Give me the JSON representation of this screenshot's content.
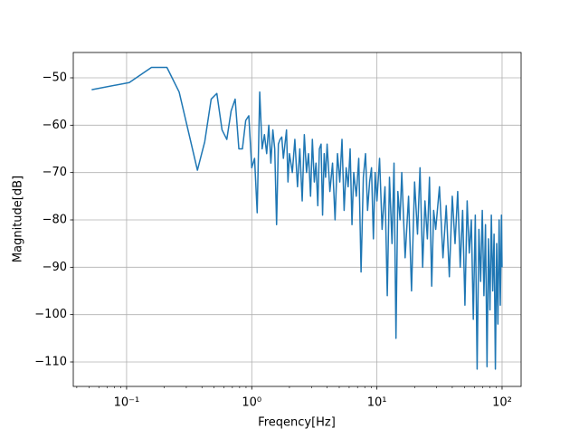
{
  "chart_data": {
    "type": "line",
    "xlabel": "Freqency[Hz]",
    "ylabel": "Magnitude[dB]",
    "xscale": "log",
    "grid": true,
    "xlim": [
      0.0375,
      141.9
    ],
    "ylim": [
      -115.16,
      -44.65
    ],
    "xticks": [
      {
        "value": 0.1,
        "label": "10⁻¹"
      },
      {
        "value": 1,
        "label": "10⁰"
      },
      {
        "value": 10,
        "label": "10¹"
      },
      {
        "value": 100,
        "label": "10²"
      }
    ],
    "xminorticks": [
      0.04,
      0.05,
      0.06,
      0.07,
      0.08,
      0.09,
      0.2,
      0.3,
      0.4,
      0.5,
      0.6,
      0.7,
      0.8,
      0.9,
      2,
      3,
      4,
      5,
      6,
      7,
      8,
      9,
      20,
      30,
      40,
      50,
      60,
      70,
      80,
      90
    ],
    "yticks": [
      {
        "value": -50,
        "label": "−50"
      },
      {
        "value": -60,
        "label": "−60"
      },
      {
        "value": -70,
        "label": "−70"
      },
      {
        "value": -80,
        "label": "−80"
      },
      {
        "value": -90,
        "label": "−90"
      },
      {
        "value": -100,
        "label": "−100"
      },
      {
        "value": -110,
        "label": "−110"
      }
    ],
    "series": [
      {
        "color": "#1f77b4",
        "x": [
          0.0526,
          0.105,
          0.158,
          0.21,
          0.263,
          0.316,
          0.368,
          0.421,
          0.474,
          0.526,
          0.579,
          0.632,
          0.684,
          0.737,
          0.789,
          0.842,
          0.895,
          0.947,
          1.0,
          1.053,
          1.105,
          1.158,
          1.21,
          1.263,
          1.316,
          1.368,
          1.421,
          1.474,
          1.526,
          1.579,
          1.632,
          1.684,
          1.737,
          1.789,
          1.842,
          1.895,
          1.947,
          2.0,
          2.11,
          2.21,
          2.32,
          2.42,
          2.53,
          2.63,
          2.74,
          2.84,
          2.95,
          3.05,
          3.16,
          3.26,
          3.37,
          3.47,
          3.58,
          3.68,
          3.79,
          3.89,
          4.0,
          4.21,
          4.42,
          4.63,
          4.84,
          5.05,
          5.26,
          5.47,
          5.68,
          5.89,
          6.11,
          6.32,
          6.53,
          6.84,
          7.16,
          7.47,
          7.79,
          8.11,
          8.42,
          8.74,
          9.05,
          9.37,
          9.68,
          10.0,
          10.5,
          11.0,
          11.6,
          12.1,
          12.6,
          13.2,
          13.7,
          14.2,
          14.7,
          15.3,
          15.8,
          16.8,
          17.9,
          18.9,
          20.0,
          21.1,
          22.1,
          23.2,
          24.2,
          25.3,
          26.3,
          27.4,
          28.4,
          29.5,
          31.6,
          33.7,
          35.8,
          37.9,
          40.0,
          42.1,
          44.2,
          46.3,
          48.4,
          50.5,
          52.6,
          54.7,
          56.8,
          58.9,
          61.1,
          63.2,
          65.3,
          67.4,
          69.5,
          71.6,
          73.7,
          75.8,
          77.9,
          80.0,
          82.1,
          84.2,
          86.3,
          88.4,
          90.5,
          92.6,
          94.7,
          96.8,
          98.9,
          100.0
        ],
        "values": [
          -52.5,
          -51,
          -47.8,
          -47.8,
          -53,
          -62,
          -69.5,
          -63.5,
          -54.5,
          -53.3,
          -61,
          -63,
          -57,
          -54.5,
          -65,
          -65,
          -59,
          -58,
          -69,
          -67,
          -78.5,
          -53,
          -65,
          -62,
          -66,
          -60,
          -68,
          -61,
          -65,
          -81,
          -64,
          -63,
          -62.5,
          -67,
          -64,
          -61,
          -72,
          -66,
          -70,
          -63,
          -73,
          -65,
          -76,
          -62,
          -70,
          -66,
          -75,
          -63,
          -72,
          -68,
          -77,
          -65,
          -64,
          -79,
          -66,
          -71,
          -64,
          -74,
          -68,
          -80,
          -66,
          -72,
          -63,
          -78,
          -69,
          -73,
          -65,
          -81,
          -70,
          -75,
          -67,
          -91,
          -71,
          -66,
          -78,
          -72,
          -69,
          -84,
          -70,
          -76,
          -67,
          -82,
          -73,
          -96,
          -71,
          -85,
          -68,
          -105,
          -74,
          -80,
          -70,
          -88,
          -75,
          -95,
          -72,
          -83,
          -69,
          -90,
          -76,
          -84,
          -71,
          -94,
          -78,
          -82,
          -73,
          -88,
          -77,
          -92,
          -75,
          -85,
          -74,
          -90,
          -78,
          -98,
          -76,
          -87,
          -80,
          -101,
          -79,
          -111.5,
          -82,
          -93,
          -78,
          -96,
          -81,
          -111,
          -84,
          -99,
          -79,
          -95,
          -83,
          -111.5,
          -85,
          -102,
          -80,
          -98,
          -79,
          -90
        ]
      }
    ]
  }
}
